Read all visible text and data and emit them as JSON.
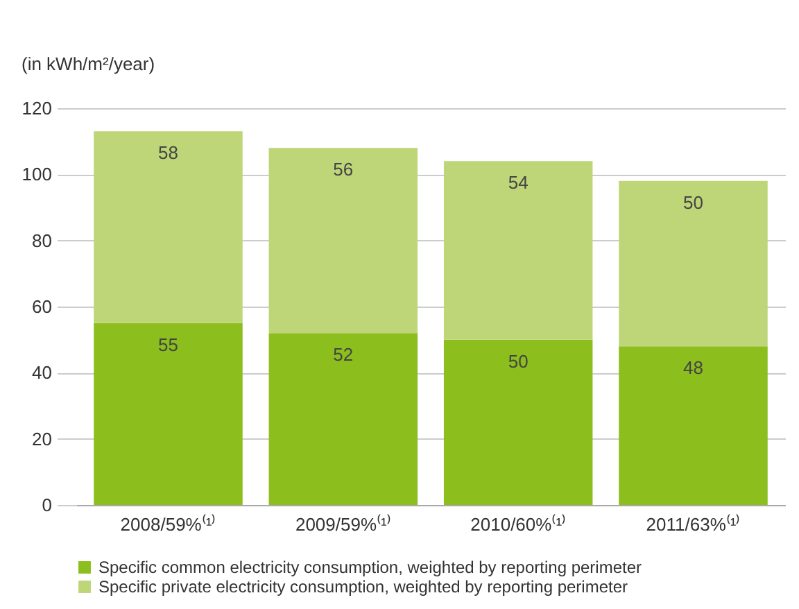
{
  "chart_data": {
    "type": "bar",
    "ylabel": "(in kWh/m²/year)",
    "categories": [
      "2008/59%⁽¹⁾",
      "2009/59%⁽¹⁾",
      "2010/60%⁽¹⁾",
      "2011/63%⁽¹⁾"
    ],
    "series": [
      {
        "name": "Specific common electricity consumption, weighted by reporting perimeter",
        "color": "#8cbe1e",
        "values": [
          55,
          52,
          50,
          48
        ]
      },
      {
        "name": "Specific private electricity consumption, weighted by reporting perimeter",
        "color": "#bed678",
        "values": [
          58,
          56,
          54,
          50
        ]
      }
    ],
    "stacked": true,
    "ylim": [
      0,
      120
    ],
    "yticks": [
      0,
      20,
      40,
      60,
      80,
      100,
      120
    ],
    "grid": "y",
    "data_labels": true,
    "legend": "bottom"
  }
}
